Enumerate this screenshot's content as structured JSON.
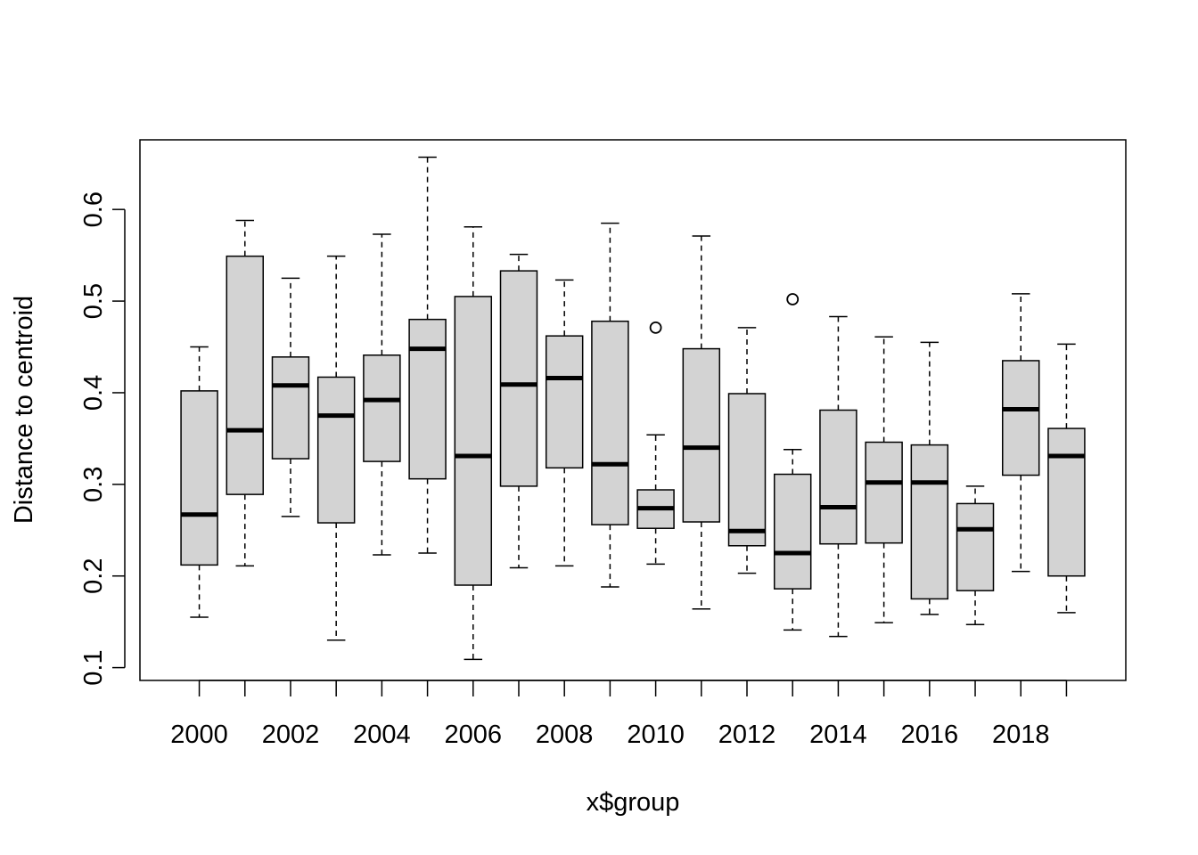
{
  "chart_data": {
    "type": "boxplot",
    "title": "",
    "xlabel": "x$group",
    "ylabel": "Distance to centroid",
    "ylim": [
      0.086,
      0.676
    ],
    "y_ticks": [
      0.1,
      0.2,
      0.3,
      0.4,
      0.5,
      0.6
    ],
    "y_tick_labels": [
      "0.1",
      "0.2",
      "0.3",
      "0.4",
      "0.5",
      "0.6"
    ],
    "x_tick_labels": [
      "2000",
      "2002",
      "2004",
      "2006",
      "2008",
      "2010",
      "2012",
      "2014",
      "2016",
      "2018"
    ],
    "categories": [
      "2000",
      "2001",
      "2002",
      "2003",
      "2004",
      "2005",
      "2006",
      "2007",
      "2008",
      "2009",
      "2010",
      "2011",
      "2012",
      "2013",
      "2014",
      "2015",
      "2016",
      "2017",
      "2018",
      "2019"
    ],
    "grid": false,
    "box_fill": "#d3d3d3",
    "line_color": "#000000",
    "boxes": [
      {
        "group": "2000",
        "whisker_low": 0.155,
        "q1": 0.212,
        "median": 0.267,
        "q3": 0.402,
        "whisker_high": 0.45,
        "outliers": []
      },
      {
        "group": "2001",
        "whisker_low": 0.211,
        "q1": 0.289,
        "median": 0.359,
        "q3": 0.549,
        "whisker_high": 0.588,
        "outliers": []
      },
      {
        "group": "2002",
        "whisker_low": 0.265,
        "q1": 0.328,
        "median": 0.408,
        "q3": 0.439,
        "whisker_high": 0.525,
        "outliers": []
      },
      {
        "group": "2003",
        "whisker_low": 0.13,
        "q1": 0.258,
        "median": 0.375,
        "q3": 0.417,
        "whisker_high": 0.549,
        "outliers": []
      },
      {
        "group": "2004",
        "whisker_low": 0.223,
        "q1": 0.325,
        "median": 0.392,
        "q3": 0.441,
        "whisker_high": 0.573,
        "outliers": []
      },
      {
        "group": "2005",
        "whisker_low": 0.225,
        "q1": 0.306,
        "median": 0.448,
        "q3": 0.48,
        "whisker_high": 0.657,
        "outliers": []
      },
      {
        "group": "2006",
        "whisker_low": 0.109,
        "q1": 0.19,
        "median": 0.331,
        "q3": 0.505,
        "whisker_high": 0.581,
        "outliers": []
      },
      {
        "group": "2007",
        "whisker_low": 0.209,
        "q1": 0.298,
        "median": 0.409,
        "q3": 0.533,
        "whisker_high": 0.551,
        "outliers": []
      },
      {
        "group": "2008",
        "whisker_low": 0.211,
        "q1": 0.318,
        "median": 0.416,
        "q3": 0.462,
        "whisker_high": 0.523,
        "outliers": []
      },
      {
        "group": "2009",
        "whisker_low": 0.188,
        "q1": 0.256,
        "median": 0.322,
        "q3": 0.478,
        "whisker_high": 0.585,
        "outliers": []
      },
      {
        "group": "2010",
        "whisker_low": 0.213,
        "q1": 0.252,
        "median": 0.274,
        "q3": 0.294,
        "whisker_high": 0.354,
        "outliers": [
          0.471
        ]
      },
      {
        "group": "2011",
        "whisker_low": 0.164,
        "q1": 0.259,
        "median": 0.34,
        "q3": 0.448,
        "whisker_high": 0.571,
        "outliers": []
      },
      {
        "group": "2012",
        "whisker_low": 0.203,
        "q1": 0.233,
        "median": 0.249,
        "q3": 0.399,
        "whisker_high": 0.471,
        "outliers": []
      },
      {
        "group": "2013",
        "whisker_low": 0.141,
        "q1": 0.186,
        "median": 0.225,
        "q3": 0.311,
        "whisker_high": 0.338,
        "outliers": [
          0.502
        ]
      },
      {
        "group": "2014",
        "whisker_low": 0.134,
        "q1": 0.235,
        "median": 0.275,
        "q3": 0.381,
        "whisker_high": 0.483,
        "outliers": []
      },
      {
        "group": "2015",
        "whisker_low": 0.149,
        "q1": 0.236,
        "median": 0.302,
        "q3": 0.346,
        "whisker_high": 0.461,
        "outliers": []
      },
      {
        "group": "2016",
        "whisker_low": 0.158,
        "q1": 0.175,
        "median": 0.302,
        "q3": 0.343,
        "whisker_high": 0.455,
        "outliers": []
      },
      {
        "group": "2017",
        "whisker_low": 0.147,
        "q1": 0.184,
        "median": 0.251,
        "q3": 0.279,
        "whisker_high": 0.298,
        "outliers": []
      },
      {
        "group": "2018",
        "whisker_low": 0.205,
        "q1": 0.31,
        "median": 0.382,
        "q3": 0.435,
        "whisker_high": 0.508,
        "outliers": []
      },
      {
        "group": "2019",
        "whisker_low": 0.16,
        "q1": 0.2,
        "median": 0.331,
        "q3": 0.361,
        "whisker_high": 0.453,
        "outliers": []
      }
    ]
  }
}
